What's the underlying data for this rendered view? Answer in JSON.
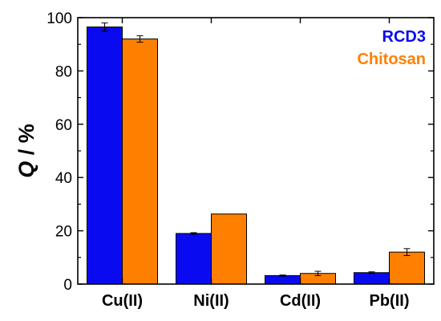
{
  "chart_data": {
    "type": "bar",
    "title": "",
    "xlabel": "",
    "ylabel": {
      "symbol": "Q",
      "rest": " / %"
    },
    "ylim": [
      0,
      100
    ],
    "yticks": [
      0,
      20,
      40,
      60,
      80,
      100
    ],
    "categories": [
      "Cu(II)",
      "Ni(II)",
      "Cd(II)",
      "Pb(II)"
    ],
    "series": [
      {
        "name": "RCD3",
        "color": "#0a0af0",
        "values": [
          96.5,
          19.0,
          3.2,
          4.3
        ],
        "errors": [
          1.5,
          0.3,
          0.2,
          0.3
        ]
      },
      {
        "name": "Chitosan",
        "color": "#ff8000",
        "values": [
          92.0,
          26.3,
          4.0,
          12.0
        ],
        "errors": [
          1.2,
          0.0,
          0.8,
          1.3
        ]
      }
    ],
    "legend_position": "top-right",
    "grid": false
  }
}
